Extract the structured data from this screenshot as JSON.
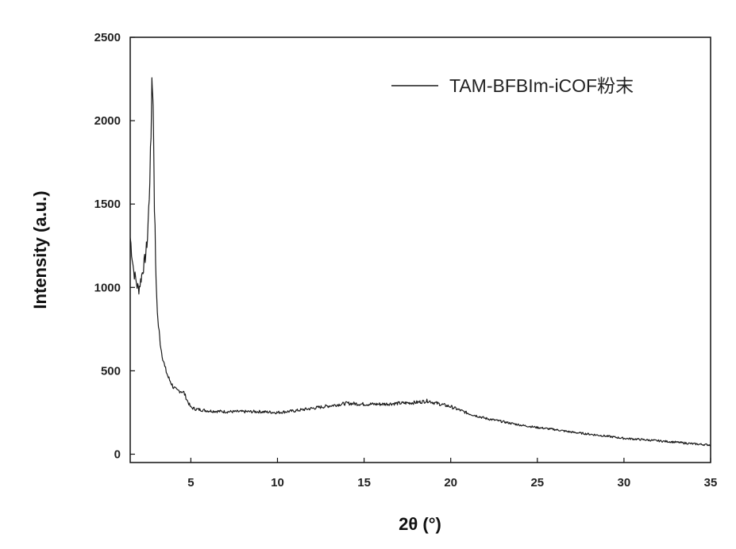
{
  "chart_data": {
    "type": "line",
    "xlabel": "2θ (°)",
    "ylabel": "Intensity (a.u.)",
    "xlim": [
      1.5,
      35
    ],
    "ylim": [
      -50,
      2500
    ],
    "xticks": [
      5,
      10,
      15,
      20,
      25,
      30,
      35
    ],
    "yticks": [
      0,
      500,
      1000,
      1500,
      2000,
      2500
    ],
    "grid": false,
    "legend_position": "top-right",
    "series": [
      {
        "name": "TAM-BFBIm-iCOF粉末",
        "color": "#1a1a1a",
        "x": [
          1.5,
          1.7,
          1.9,
          2.0,
          2.1,
          2.2,
          2.3,
          2.4,
          2.5,
          2.6,
          2.7,
          2.75,
          2.8,
          2.85,
          2.9,
          3.0,
          3.1,
          3.2,
          3.3,
          3.5,
          3.7,
          4.0,
          4.2,
          4.4,
          4.6,
          4.8,
          5.0,
          5.3,
          6,
          7,
          8,
          9,
          10,
          11,
          12,
          13,
          14,
          15,
          16,
          17,
          18,
          18.7,
          19,
          20,
          21,
          22,
          23,
          24,
          25,
          26,
          27,
          28,
          29,
          30,
          31,
          32,
          33,
          34,
          35
        ],
        "y": [
          1300,
          1100,
          1010,
          990,
          1040,
          1090,
          1140,
          1200,
          1300,
          1550,
          1900,
          2250,
          2200,
          1900,
          1500,
          1000,
          800,
          700,
          620,
          520,
          460,
          400,
          380,
          380,
          370,
          320,
          280,
          270,
          260,
          255,
          255,
          255,
          250,
          260,
          275,
          290,
          305,
          300,
          300,
          305,
          310,
          320,
          310,
          285,
          245,
          215,
          195,
          175,
          160,
          148,
          132,
          120,
          108,
          95,
          88,
          80,
          72,
          62,
          55
        ]
      }
    ]
  }
}
